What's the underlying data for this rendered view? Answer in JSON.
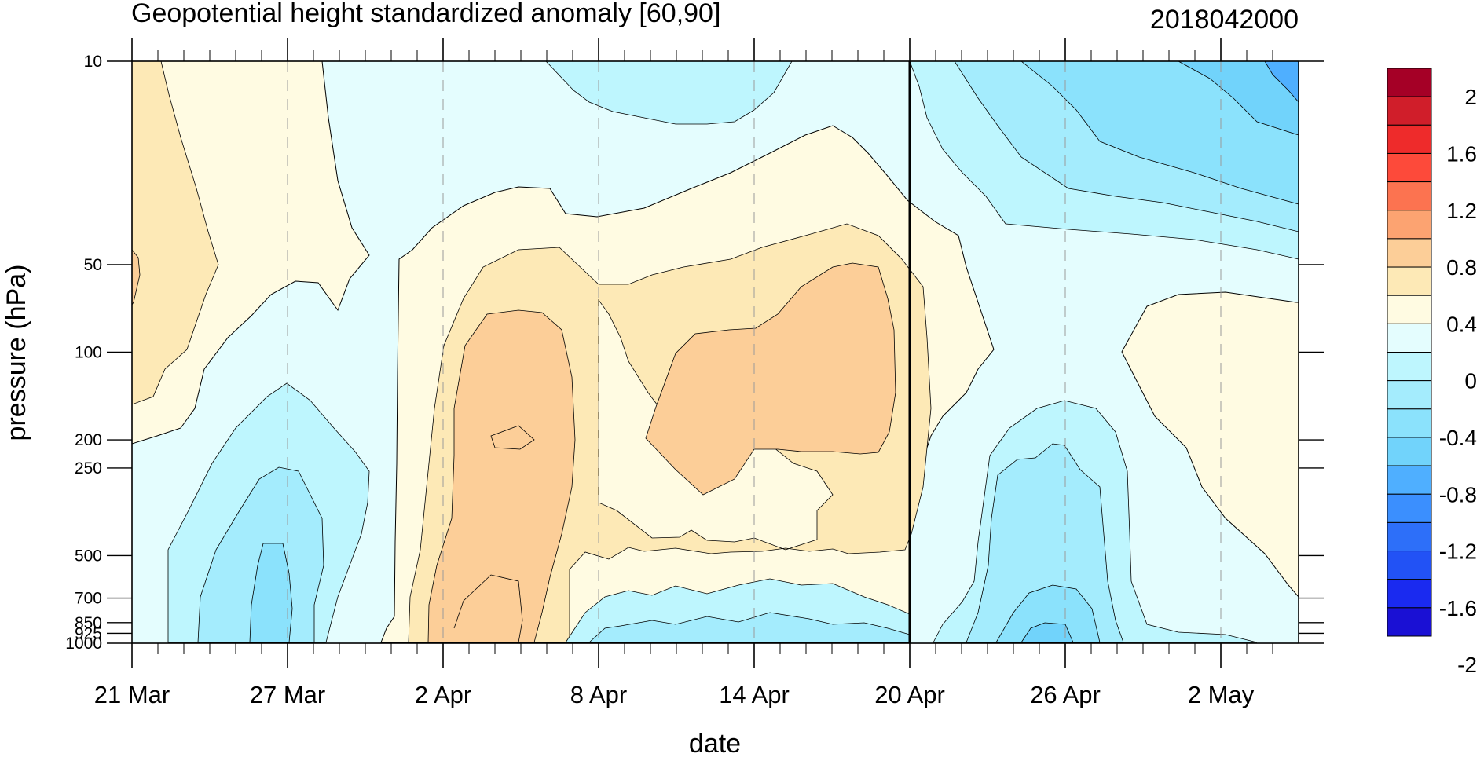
{
  "chart_data": {
    "type": "heatmap",
    "title": "Geopotential height standardized anomaly [60,90]",
    "subtitle": "2018042000",
    "xlabel": "date",
    "ylabel": "pressure (hPa)",
    "x_ticks": [
      "21 Mar",
      "27 Mar",
      "2 Apr",
      "8 Apr",
      "14 Apr",
      "20 Apr",
      "26 Apr",
      "2 May"
    ],
    "x_tick_days": [
      0,
      6,
      12,
      18,
      24,
      30,
      36,
      42
    ],
    "xlim_days": [
      0,
      45
    ],
    "y_ticks": [
      {
        "label": "10",
        "value": 10
      },
      {
        "label": "50",
        "value": 50
      },
      {
        "label": "100",
        "value": 100
      },
      {
        "label": "200",
        "value": 200
      },
      {
        "label": "250",
        "value": 250
      },
      {
        "label": "500",
        "value": 500
      },
      {
        "label": "700",
        "value": 700
      },
      {
        "label": "850",
        "value": 850
      },
      {
        "label": "925",
        "value": 925
      },
      {
        "label": "1000",
        "value": 1000
      }
    ],
    "ylim": [
      1000,
      10
    ],
    "y_scale": "log (height-like), pressure decreasing upward",
    "vertical_marker_day": 30,
    "colorbar": {
      "labels": [
        "2",
        "1.6",
        "1.2",
        "0.8",
        "0.4",
        "0",
        "-0.4",
        "-0.8",
        "-1.2",
        "-1.6",
        "-2"
      ],
      "colors": [
        "#a50026",
        "#d01e2a",
        "#ee2b2b",
        "#fd4a3a",
        "#fc7350",
        "#fca371",
        "#fcce98",
        "#fde9b6",
        "#fffbe2",
        "#e4fdfe",
        "#bef6fe",
        "#a4ecfd",
        "#8be2fc",
        "#71d3fb",
        "#4fafff",
        "#3b8ffe",
        "#2d6ff9",
        "#2252f5",
        "#1a2af0",
        "#1a10d4"
      ],
      "orientation": "vertical",
      "placement": "right"
    },
    "regions": [
      {
        "level": "0 to 0.4",
        "color": "#fffbe2",
        "description": "positive anomaly shell"
      },
      {
        "level": "0.4 to 0.6",
        "color": "#fde9b6"
      },
      {
        "level": "0.6 to 0.8",
        "color": "#fcce98",
        "note": "cores near 4 Apr low levels and 15-18 Apr 50-250 hPa"
      },
      {
        "level": "0 to -0.2",
        "color": "#e4fdfe",
        "description": "background"
      },
      {
        "level": "-0.2 to -0.4",
        "color": "#bef6fe"
      },
      {
        "level": "-0.4 to -0.6",
        "color": "#a4ecfd"
      },
      {
        "level": "-0.6 to -0.8",
        "color": "#8be2fc"
      },
      {
        "level": "-0.8 to -1.0",
        "color": "#71d3fb",
        "note": "upper-right corner early May near 10 hPa"
      }
    ]
  }
}
